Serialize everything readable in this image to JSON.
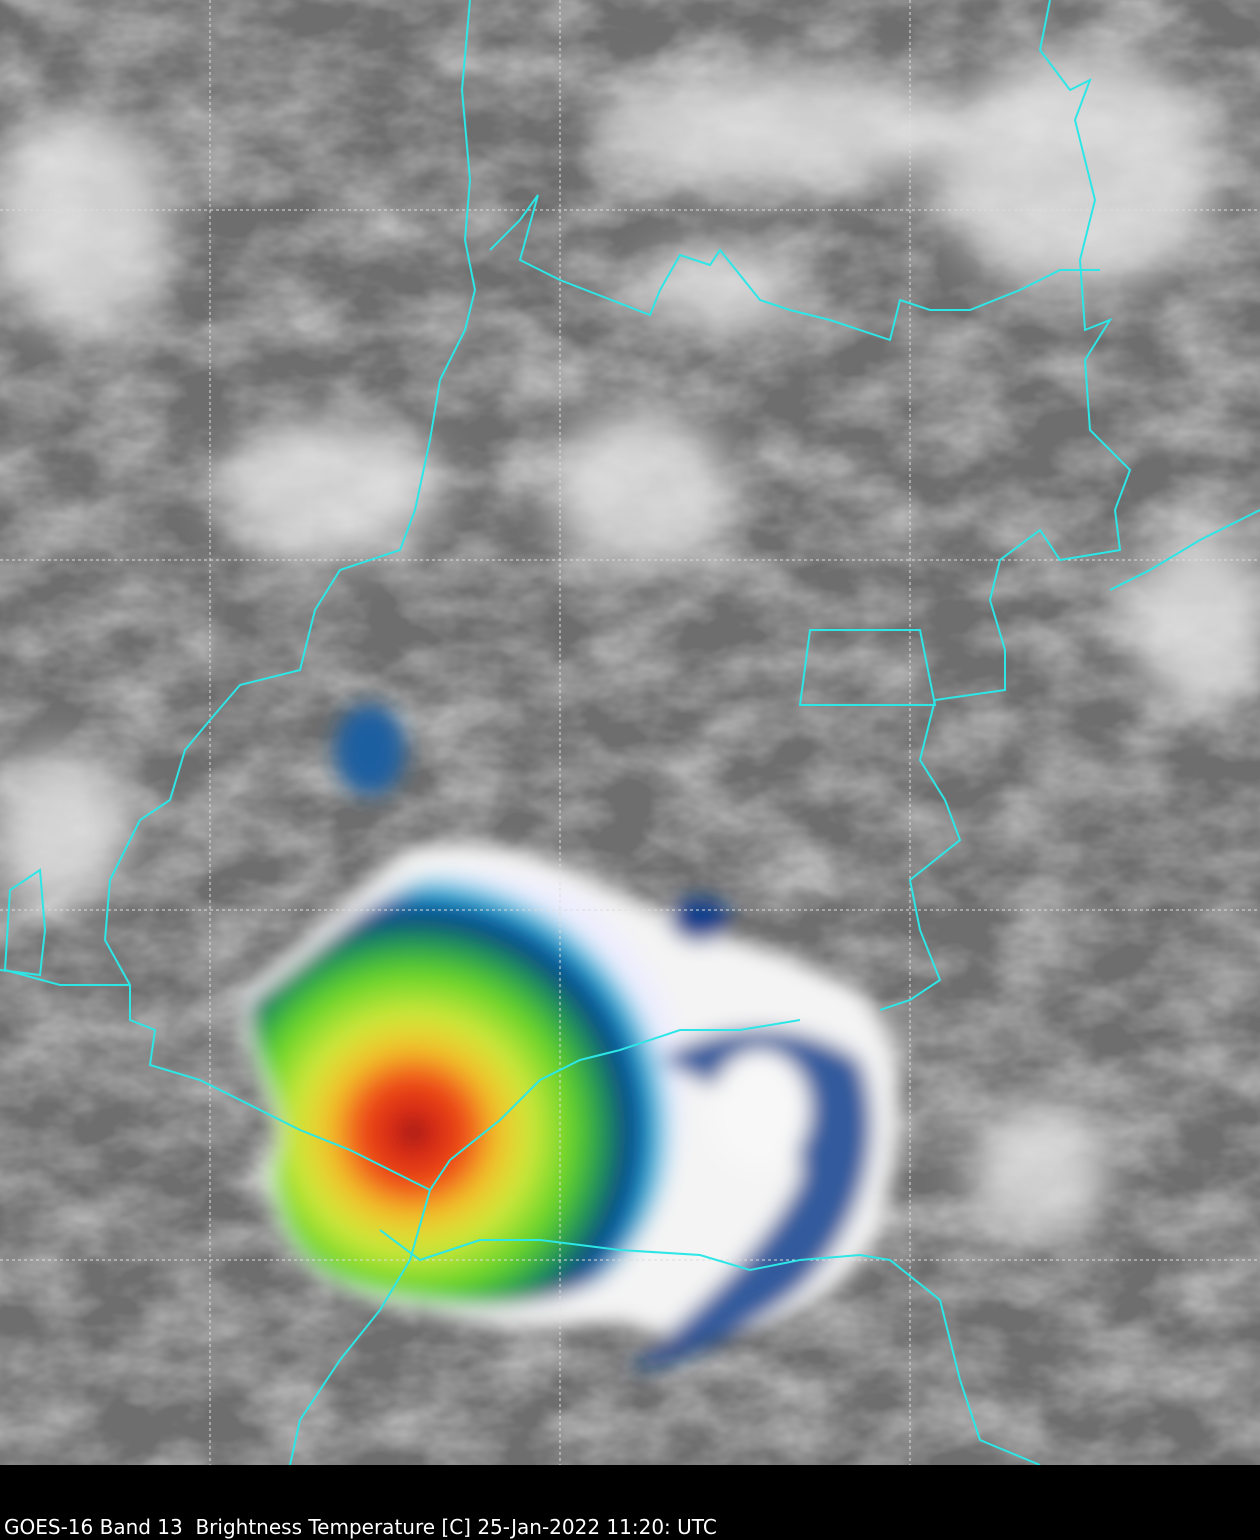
{
  "caption": "GOES-16 Band 13  Brightness Temperature [C] 25-Jan-2022 11:20: UTC"
}
